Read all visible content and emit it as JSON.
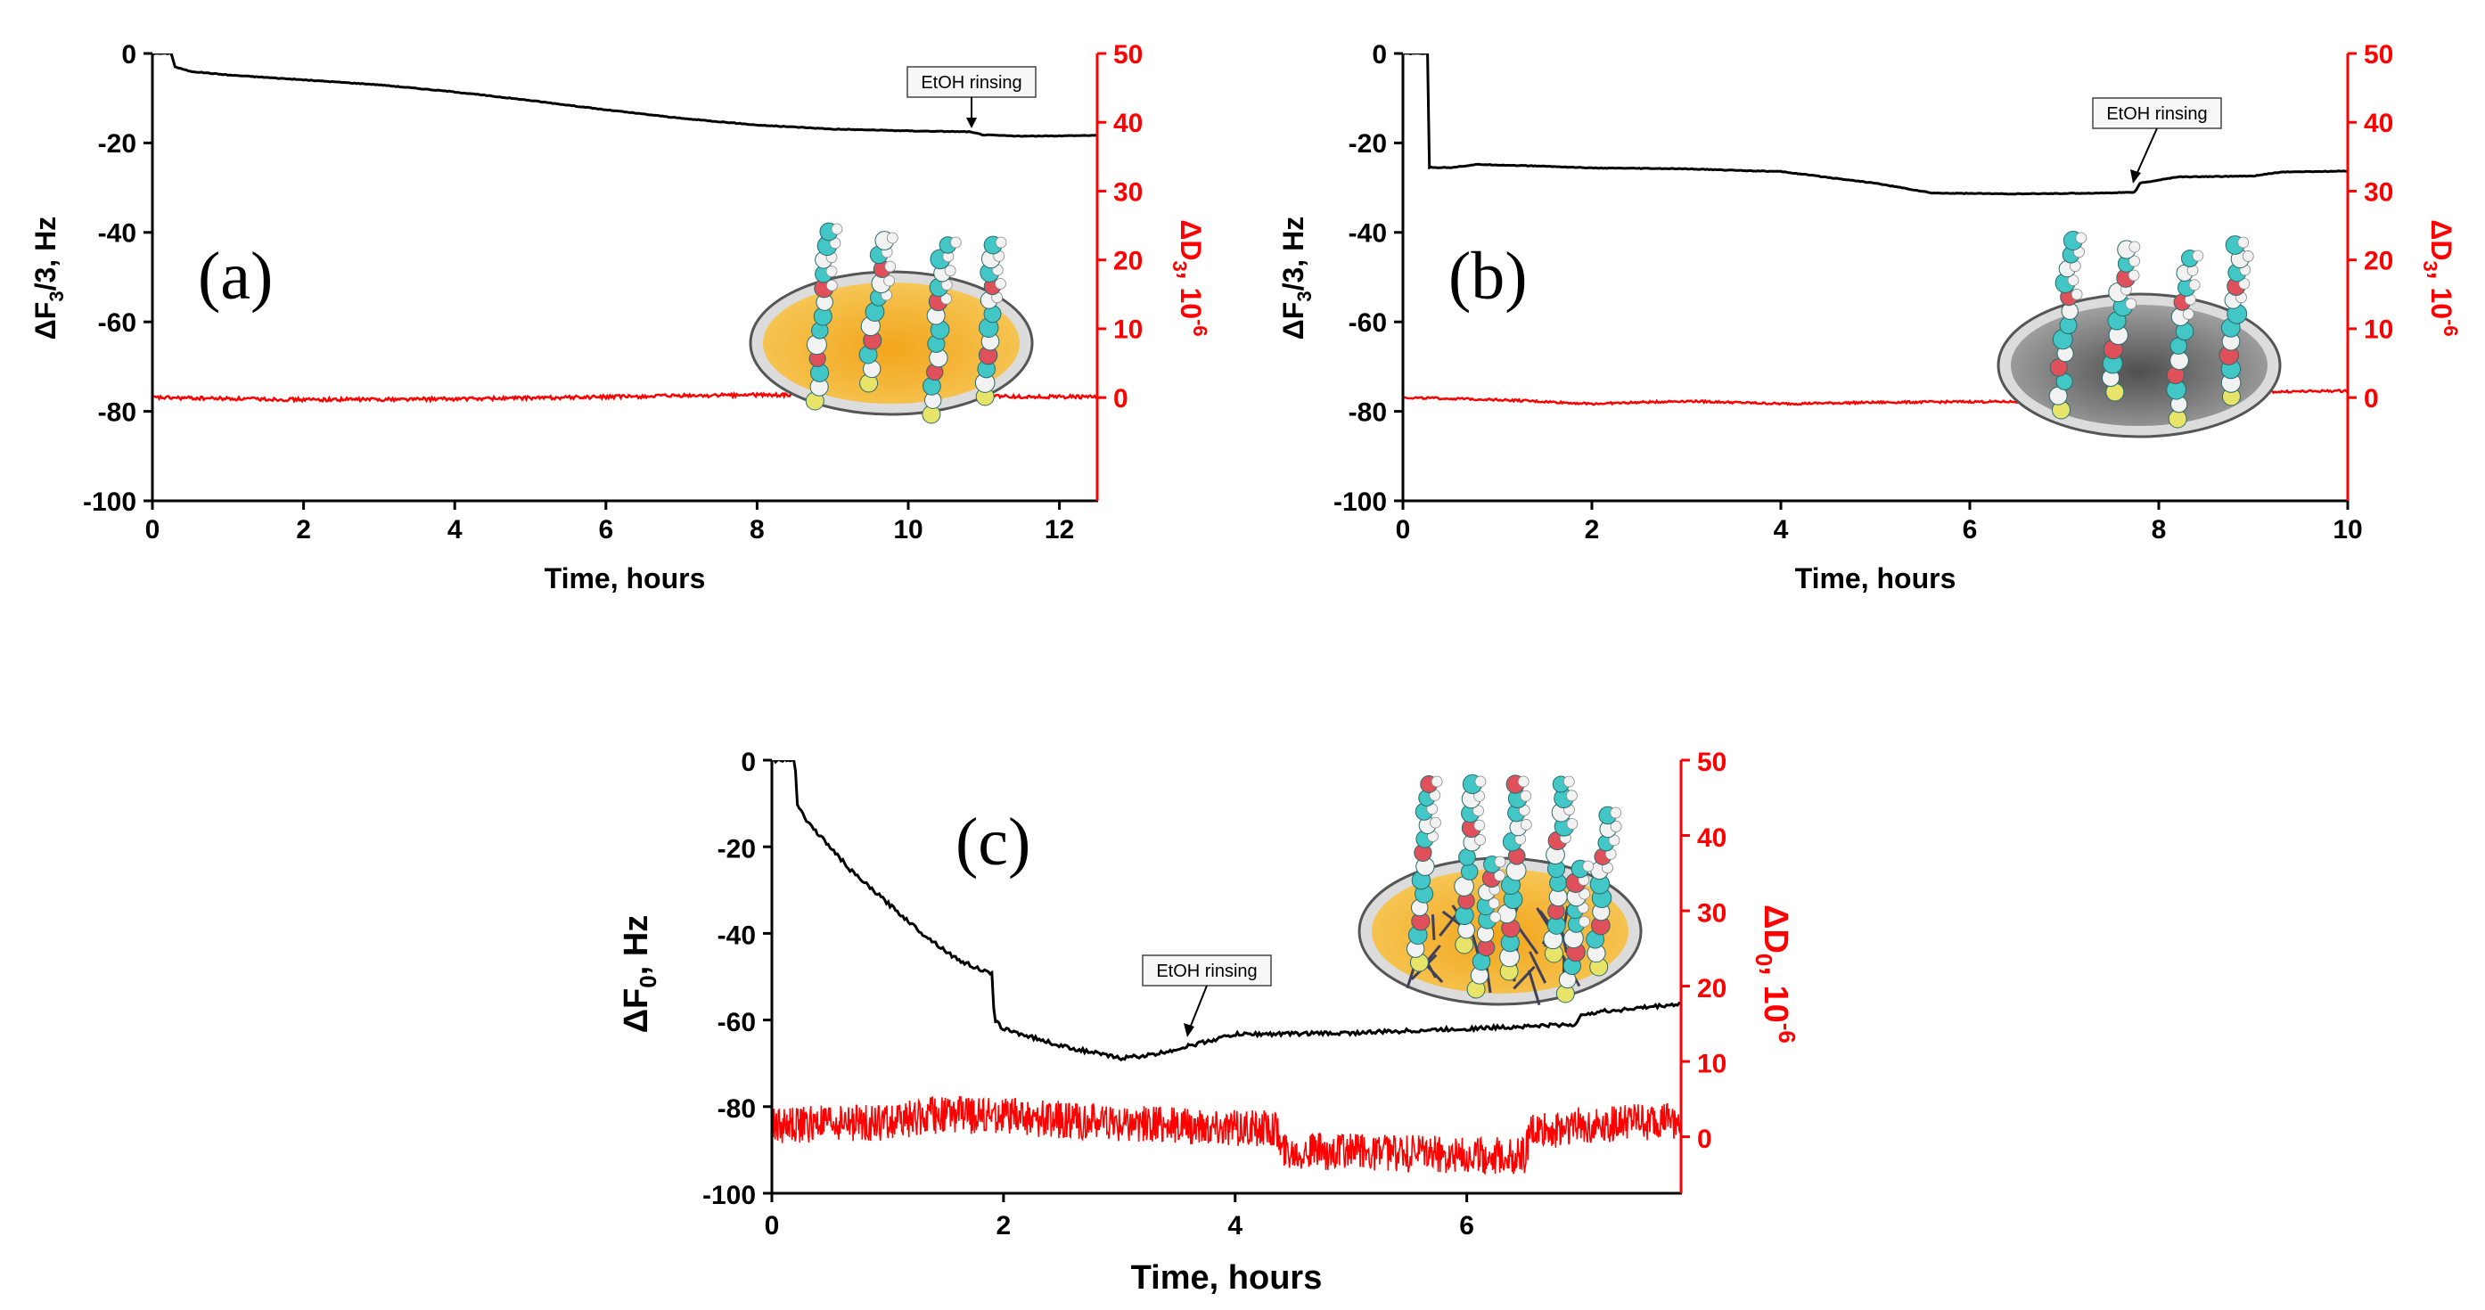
{
  "figure": {
    "colors": {
      "frequency": "#000000",
      "dissipation": "#ff0000",
      "gold": "#f0b030",
      "grey": "#8a8a8a"
    }
  },
  "chart_data": [
    {
      "type": "line",
      "panel_label": "(a)",
      "xlabel": "Time, hours",
      "ylabel": "ΔF3/3, Hz",
      "ylabel_parts": {
        "base": "ΔF",
        "sub": "3",
        "rest": "/3, Hz"
      },
      "y2label": "ΔD3, 10-6",
      "y2label_parts": {
        "base": "ΔD",
        "sub": "3",
        "rest": ", 10",
        "sup": "-6"
      },
      "xlim": [
        0,
        12.5
      ],
      "ylim": [
        -100,
        0
      ],
      "y2lim": [
        -15,
        50
      ],
      "xticks": [
        "0",
        "2",
        "4",
        "6",
        "8",
        "10",
        "12"
      ],
      "yticks": [
        "0",
        "-20",
        "-40",
        "-60",
        "-80",
        "-100"
      ],
      "y2ticks": [
        "0",
        "10",
        "20",
        "30",
        "40",
        "50"
      ],
      "annotation": {
        "text": "EtOH rinsing",
        "x": 10.9
      },
      "substrate": "gold",
      "series": [
        {
          "name": "ΔF3/3",
          "axis": "left",
          "color": "#000000",
          "points": [
            [
              0,
              0
            ],
            [
              0.25,
              0
            ],
            [
              0.3,
              -3
            ],
            [
              0.5,
              -4
            ],
            [
              1,
              -4.8
            ],
            [
              2,
              -5.9
            ],
            [
              3,
              -7
            ],
            [
              4,
              -8.6
            ],
            [
              5,
              -10.5
            ],
            [
              6,
              -12.6
            ],
            [
              7,
              -14.5
            ],
            [
              8,
              -16
            ],
            [
              9,
              -16.9
            ],
            [
              10,
              -17.3
            ],
            [
              10.8,
              -17.5
            ],
            [
              11,
              -18.2
            ],
            [
              11.5,
              -18.5
            ],
            [
              12,
              -18.4
            ],
            [
              12.5,
              -18.3
            ]
          ]
        },
        {
          "name": "ΔD3",
          "axis": "right",
          "color": "#ff0000",
          "noise": 0.25,
          "points": [
            [
              0,
              0
            ],
            [
              2,
              -0.3
            ],
            [
              4,
              -0.2
            ],
            [
              6,
              0.1
            ],
            [
              8,
              0.4
            ],
            [
              10,
              0.2
            ],
            [
              12.5,
              0.1
            ]
          ]
        }
      ]
    },
    {
      "type": "line",
      "panel_label": "(b)",
      "xlabel": "Time, hours",
      "ylabel": "ΔF3/3, Hz",
      "ylabel_parts": {
        "base": "ΔF",
        "sub": "3",
        "rest": "/3, Hz"
      },
      "y2label": "ΔD3, 10-6",
      "y2label_parts": {
        "base": "ΔD",
        "sub": "3",
        "rest": ", 10",
        "sup": "-6"
      },
      "xlim": [
        0,
        10
      ],
      "ylim": [
        -100,
        0
      ],
      "y2lim": [
        -15,
        50
      ],
      "xticks": [
        "0",
        "2",
        "4",
        "6",
        "8",
        "10"
      ],
      "yticks": [
        "0",
        "-20",
        "-40",
        "-60",
        "-80",
        "-100"
      ],
      "y2ticks": [
        "0",
        "10",
        "20",
        "30",
        "40",
        "50"
      ],
      "annotation": {
        "text": "EtOH rinsing",
        "x": 7.75
      },
      "substrate": "grey",
      "series": [
        {
          "name": "ΔF3/3",
          "axis": "left",
          "color": "#000000",
          "points": [
            [
              0,
              0
            ],
            [
              0.26,
              0
            ],
            [
              0.28,
              -25.5
            ],
            [
              0.5,
              -25.5
            ],
            [
              0.8,
              -24.8
            ],
            [
              1.5,
              -25.2
            ],
            [
              2,
              -25.6
            ],
            [
              3,
              -25.8
            ],
            [
              4,
              -26.4
            ],
            [
              5,
              -29
            ],
            [
              5.6,
              -31.2
            ],
            [
              6.5,
              -31.4
            ],
            [
              7.4,
              -31.2
            ],
            [
              7.75,
              -31
            ],
            [
              7.8,
              -29
            ],
            [
              8.2,
              -27.6
            ],
            [
              9,
              -27.4
            ],
            [
              9.3,
              -26.5
            ],
            [
              10,
              -26.3
            ]
          ]
        },
        {
          "name": "ΔD3",
          "axis": "right",
          "color": "#ff0000",
          "noise": 0.15,
          "points": [
            [
              0,
              0
            ],
            [
              1,
              -0.3
            ],
            [
              2,
              -0.9
            ],
            [
              3,
              -0.5
            ],
            [
              4,
              -0.9
            ],
            [
              5,
              -0.7
            ],
            [
              6,
              -0.6
            ],
            [
              7,
              -0.6
            ],
            [
              7.5,
              -0.9
            ],
            [
              8,
              -0.8
            ],
            [
              8.5,
              0.2
            ],
            [
              9,
              0.8
            ],
            [
              10,
              1
            ]
          ]
        }
      ]
    },
    {
      "type": "line",
      "panel_label": "(c)",
      "xlabel": "Time, hours",
      "ylabel": "ΔF0, Hz",
      "ylabel_parts": {
        "base": "ΔF",
        "sub": "0",
        "rest": ", Hz"
      },
      "y2label": "ΔD0, 10-6",
      "y2label_parts": {
        "base": "ΔD",
        "sub": "0",
        "rest": ", 10",
        "sup": "-6"
      },
      "xlim": [
        0,
        7.85
      ],
      "ylim": [
        -100,
        0
      ],
      "y2lim": [
        -7.5,
        50
      ],
      "xticks": [
        "0",
        "2",
        "4",
        "6"
      ],
      "yticks": [
        "0",
        "-20",
        "-40",
        "-60",
        "-80",
        "-100"
      ],
      "y2ticks": [
        "0",
        "10",
        "20",
        "30",
        "40",
        "50"
      ],
      "annotation": {
        "text": "EtOH rinsing",
        "x": 3.6
      },
      "substrate": "gold-multilayer",
      "series": [
        {
          "name": "ΔF0",
          "axis": "left",
          "color": "#000000",
          "points": [
            [
              0,
              0
            ],
            [
              0.2,
              0
            ],
            [
              0.22,
              -10
            ],
            [
              0.3,
              -14
            ],
            [
              0.5,
              -20
            ],
            [
              0.7,
              -26
            ],
            [
              1,
              -33
            ],
            [
              1.3,
              -40
            ],
            [
              1.6,
              -46
            ],
            [
              1.9,
              -49.5
            ],
            [
              1.92,
              -60
            ],
            [
              2,
              -62
            ],
            [
              2.5,
              -66
            ],
            [
              3,
              -68.8
            ],
            [
              3.3,
              -68
            ],
            [
              3.6,
              -66
            ],
            [
              4,
              -63.3
            ],
            [
              5,
              -63
            ],
            [
              6,
              -62
            ],
            [
              6.95,
              -61
            ],
            [
              7,
              -58.5
            ],
            [
              7.85,
              -56.3
            ]
          ]
        },
        {
          "name": "ΔD0",
          "axis": "right",
          "color": "#ff0000",
          "noise": 2.5,
          "points": [
            [
              0,
              1.5
            ],
            [
              1,
              2
            ],
            [
              1.5,
              3
            ],
            [
              1.8,
              2.8
            ],
            [
              2.2,
              2.5
            ],
            [
              3,
              1.8
            ],
            [
              4,
              1.2
            ],
            [
              4.35,
              1.2
            ],
            [
              4.4,
              -1.8
            ],
            [
              5,
              -2
            ],
            [
              6,
              -2.5
            ],
            [
              6.5,
              -2.5
            ],
            [
              6.55,
              0.5
            ],
            [
              7,
              1.5
            ],
            [
              7.85,
              2.2
            ]
          ]
        }
      ]
    }
  ]
}
